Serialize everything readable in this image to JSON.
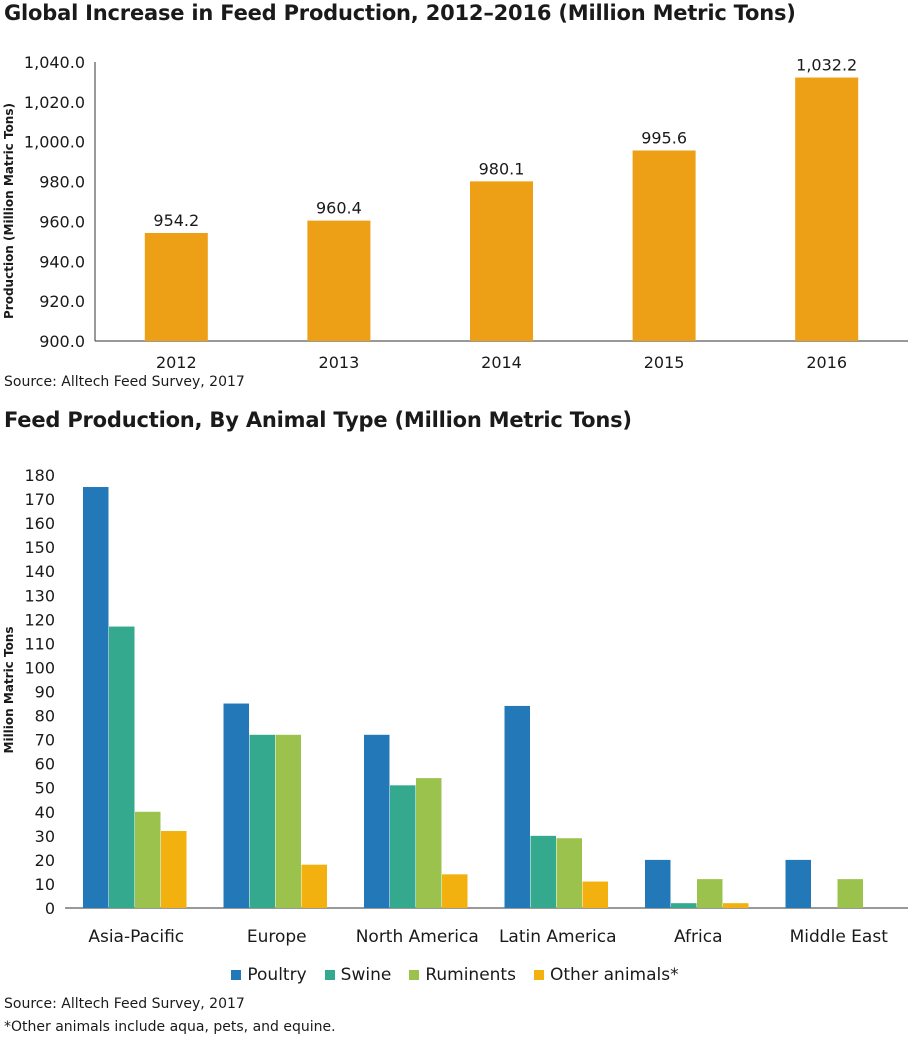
{
  "chart_data": [
    {
      "type": "bar",
      "title": "Global Increase in Feed Production, 2012–2016 (Million Metric Tons)",
      "xlabel": "",
      "ylabel": "Production (Million Matric Tons)",
      "categories": [
        "2012",
        "2013",
        "2014",
        "2015",
        "2016"
      ],
      "values": [
        954.2,
        960.4,
        980.1,
        995.6,
        1032.2
      ],
      "data_labels": [
        "954.2",
        "960.4",
        "980.1",
        "995.6",
        "1,032.2"
      ],
      "ylim": [
        900,
        1040
      ],
      "yticks": [
        900,
        920,
        940,
        960,
        980,
        1000,
        1020,
        1040
      ],
      "ytick_labels": [
        "900.0",
        "920.0",
        "940.0",
        "960.0",
        "980.0",
        "1,000.0",
        "1,020.0",
        "1,040.0"
      ],
      "grid": false,
      "color": "#ed9f16",
      "source": "Source: Alltech Feed Survey, 2017"
    },
    {
      "type": "bar",
      "title": "Feed Production, By Animal Type (Million Metric Tons)",
      "xlabel": "",
      "ylabel": "Million Matric Tons",
      "categories": [
        "Asia-Pacific",
        "Europe",
        "North America",
        "Latin America",
        "Africa",
        "Middle East"
      ],
      "series": [
        {
          "name": "Poultry",
          "color": "#2378b8",
          "values": [
            175,
            85,
            72,
            84,
            20,
            20
          ]
        },
        {
          "name": "Swine",
          "color": "#35a98e",
          "values": [
            117,
            72,
            51,
            30,
            2,
            0
          ]
        },
        {
          "name": "Ruminents",
          "color": "#9bc24c",
          "values": [
            40,
            72,
            54,
            29,
            12,
            12
          ]
        },
        {
          "name": "Other animals*",
          "color": "#f2b10f",
          "values": [
            32,
            18,
            14,
            11,
            2,
            0
          ]
        }
      ],
      "ylim": [
        0,
        180
      ],
      "yticks": [
        0,
        10,
        20,
        30,
        40,
        50,
        60,
        70,
        80,
        90,
        100,
        110,
        120,
        130,
        140,
        150,
        160,
        170,
        180
      ],
      "grid": false,
      "legend_position": "bottom-center",
      "source": "Source: Alltech Feed Survey, 2017",
      "footnote": "*Other animals include aqua, pets, and equine."
    }
  ]
}
